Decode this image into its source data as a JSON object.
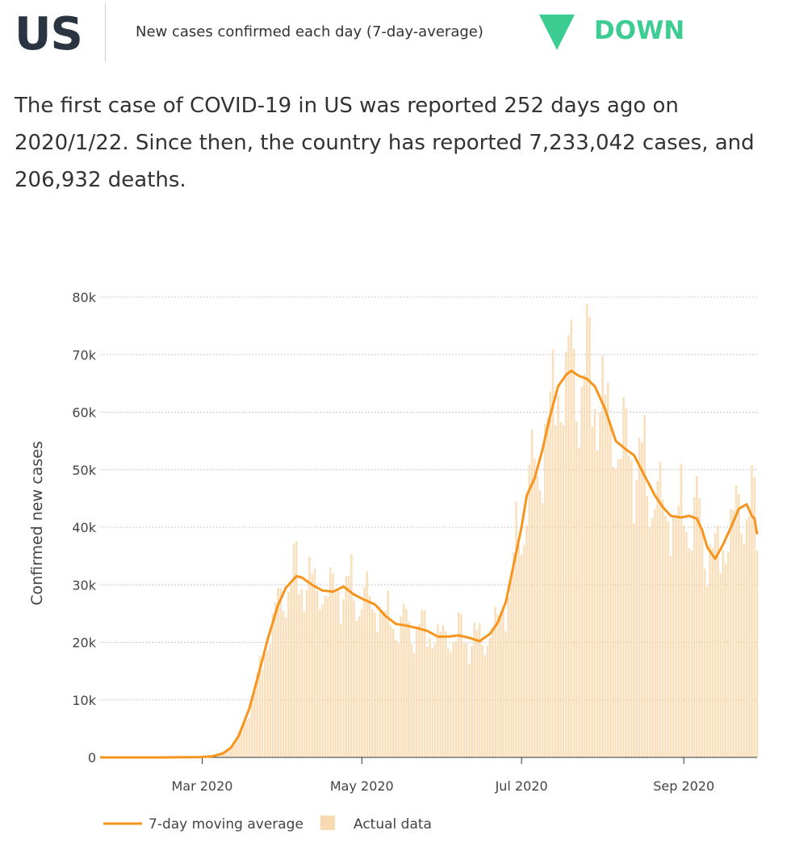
{
  "header": {
    "country": "US",
    "metric_label": "New cases confirmed each day (7-day-average)",
    "trend_icon": "down-triangle-icon",
    "trend_label": "DOWN",
    "trend_color": "#3dcc91"
  },
  "summary": {
    "text": "The first case of COVID-19 in US was reported 252 days ago on 2020/1/22. Since then, the country has reported 7,233,042 cases, and 206,932 deaths."
  },
  "chart_data": {
    "type": "line",
    "ylabel": "Confirmed new cases",
    "ylim": [
      0,
      80000
    ],
    "y_ticks": [
      0,
      10000,
      20000,
      30000,
      40000,
      50000,
      60000,
      70000,
      80000
    ],
    "y_tick_labels": [
      "0",
      "10k",
      "20k",
      "30k",
      "40k",
      "50k",
      "60k",
      "70k",
      "80k"
    ],
    "x_range": [
      "2020-01-22",
      "2020-09-29"
    ],
    "x_ticks": [
      "2020-03-01",
      "2020-05-01",
      "2020-07-01",
      "2020-09-01"
    ],
    "x_tick_labels": [
      "Mar 2020",
      "May 2020",
      "Jul 2020",
      "Sep 2020"
    ],
    "grid": true,
    "legend_position": "bottom-left",
    "colors": {
      "line": "#f7941d",
      "bars": "#f9d9b0"
    },
    "series": [
      {
        "name": "7-day moving average",
        "kind": "line",
        "points": [
          [
            "2020-01-22",
            0
          ],
          [
            "2020-02-15",
            0
          ],
          [
            "2020-02-29",
            50
          ],
          [
            "2020-03-05",
            200
          ],
          [
            "2020-03-09",
            700
          ],
          [
            "2020-03-12",
            1700
          ],
          [
            "2020-03-15",
            3800
          ],
          [
            "2020-03-19",
            8500
          ],
          [
            "2020-03-22",
            13500
          ],
          [
            "2020-03-26",
            20500
          ],
          [
            "2020-03-30",
            26500
          ],
          [
            "2020-04-02",
            29500
          ],
          [
            "2020-04-06",
            31500
          ],
          [
            "2020-04-08",
            31300
          ],
          [
            "2020-04-12",
            30000
          ],
          [
            "2020-04-16",
            29000
          ],
          [
            "2020-04-20",
            28800
          ],
          [
            "2020-04-24",
            29700
          ],
          [
            "2020-04-28",
            28300
          ],
          [
            "2020-05-02",
            27400
          ],
          [
            "2020-05-06",
            26600
          ],
          [
            "2020-05-10",
            24600
          ],
          [
            "2020-05-14",
            23200
          ],
          [
            "2020-05-18",
            22900
          ],
          [
            "2020-05-22",
            22500
          ],
          [
            "2020-05-26",
            22000
          ],
          [
            "2020-05-30",
            21000
          ],
          [
            "2020-06-03",
            21000
          ],
          [
            "2020-06-07",
            21200
          ],
          [
            "2020-06-11",
            20800
          ],
          [
            "2020-06-15",
            20200
          ],
          [
            "2020-06-19",
            21500
          ],
          [
            "2020-06-22",
            23500
          ],
          [
            "2020-06-25",
            27000
          ],
          [
            "2020-06-28",
            33500
          ],
          [
            "2020-07-01",
            40000
          ],
          [
            "2020-07-03",
            45500
          ],
          [
            "2020-07-06",
            48500
          ],
          [
            "2020-07-09",
            53500
          ],
          [
            "2020-07-12",
            59500
          ],
          [
            "2020-07-15",
            64500
          ],
          [
            "2020-07-18",
            66500
          ],
          [
            "2020-07-20",
            67200
          ],
          [
            "2020-07-23",
            66300
          ],
          [
            "2020-07-26",
            65800
          ],
          [
            "2020-07-29",
            64500
          ],
          [
            "2020-08-02",
            60500
          ],
          [
            "2020-08-06",
            55000
          ],
          [
            "2020-08-10",
            53500
          ],
          [
            "2020-08-13",
            52500
          ],
          [
            "2020-08-17",
            49000
          ],
          [
            "2020-08-21",
            45500
          ],
          [
            "2020-08-24",
            43500
          ],
          [
            "2020-08-27",
            42000
          ],
          [
            "2020-08-31",
            41700
          ],
          [
            "2020-09-03",
            42000
          ],
          [
            "2020-09-06",
            41500
          ],
          [
            "2020-09-08",
            39500
          ],
          [
            "2020-09-10",
            36500
          ],
          [
            "2020-09-13",
            34500
          ],
          [
            "2020-09-16",
            37000
          ],
          [
            "2020-09-19",
            40000
          ],
          [
            "2020-09-22",
            43200
          ],
          [
            "2020-09-25",
            44000
          ],
          [
            "2020-09-27",
            42000
          ],
          [
            "2020-09-28",
            41500
          ],
          [
            "2020-09-29",
            38800
          ]
        ]
      },
      {
        "name": "Actual data",
        "kind": "bar",
        "note": "daily values fluctuating around the moving average, peaks near 77k in July"
      }
    ]
  }
}
